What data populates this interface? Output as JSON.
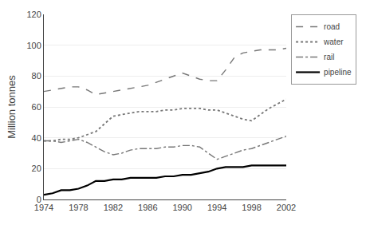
{
  "chart_data": {
    "type": "line",
    "y_label": "Million tonnes",
    "x": [
      1974,
      1975,
      1976,
      1977,
      1978,
      1979,
      1980,
      1981,
      1982,
      1983,
      1984,
      1985,
      1986,
      1987,
      1988,
      1989,
      1990,
      1991,
      1992,
      1993,
      1994,
      1995,
      1996,
      1997,
      1998,
      1999,
      2000,
      2001,
      2002
    ],
    "series": [
      {
        "name": "road",
        "color": "#777777",
        "line_style": "dash",
        "values": [
          70,
          71,
          72,
          73,
          73,
          71,
          68,
          69,
          70,
          71,
          72,
          73,
          74,
          76,
          78,
          80,
          82,
          80,
          78,
          77,
          77,
          84,
          92,
          95,
          96,
          97,
          97,
          97,
          98
        ]
      },
      {
        "name": "water",
        "color": "#777777",
        "line_style": "dot",
        "values": [
          38,
          38,
          39,
          39,
          40,
          42,
          44,
          49,
          54,
          55,
          56,
          57,
          57,
          57,
          58,
          58,
          59,
          59,
          59,
          58,
          58,
          56,
          54,
          52,
          51,
          55,
          59,
          62,
          65
        ]
      },
      {
        "name": "rail",
        "color": "#777777",
        "line_style": "dashdot",
        "values": [
          38,
          38,
          37,
          38,
          39,
          37,
          34,
          31,
          29,
          30,
          32,
          33,
          33,
          33,
          34,
          34,
          35,
          35,
          34,
          30,
          26,
          28,
          30,
          32,
          33,
          35,
          37,
          39,
          41
        ]
      },
      {
        "name": "pipeline",
        "color": "#000000",
        "line_style": "solid",
        "values": [
          3,
          4,
          6,
          6,
          7,
          9,
          12,
          12,
          13,
          13,
          14,
          14,
          14,
          14,
          15,
          15,
          16,
          16,
          17,
          18,
          20,
          21,
          21,
          21,
          22,
          22,
          22,
          22,
          22
        ]
      }
    ],
    "xlim": [
      1974,
      2002
    ],
    "xticks": [
      1974,
      1978,
      1982,
      1986,
      1990,
      1994,
      1998,
      2002
    ],
    "ylim": [
      0,
      120
    ],
    "yticks": [
      0,
      20,
      40,
      60,
      80,
      100,
      120
    ],
    "grid": true,
    "legend": "right"
  }
}
